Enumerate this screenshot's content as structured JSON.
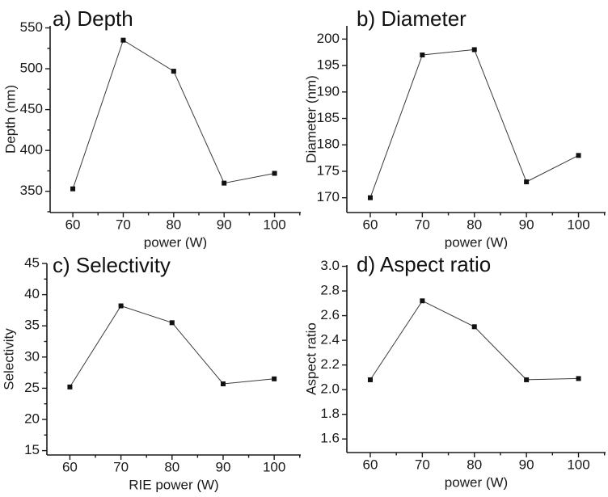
{
  "figure": {
    "background": "#ffffff",
    "text_color": "#1a1a1a",
    "axis_color": "#1a1a1a",
    "line_color": "#3a3a3a",
    "marker_color": "#111111",
    "marker": "square"
  },
  "chart_data": [
    {
      "id": "a",
      "type": "line",
      "title": "a) Depth",
      "xlabel": "power (W)",
      "ylabel": "Depth (nm)",
      "x": [
        60,
        70,
        80,
        90,
        100
      ],
      "y": [
        353,
        535,
        497,
        360,
        372
      ],
      "xticks": [
        60,
        70,
        80,
        90,
        100
      ],
      "xtick_labels": [
        "60",
        "70",
        "80",
        "90",
        "100"
      ],
      "yticks": [
        350,
        400,
        450,
        500,
        550
      ],
      "ytick_labels": [
        "350",
        "400",
        "450",
        "500",
        "550"
      ],
      "xlim": [
        55.5,
        105.2
      ],
      "ylim": [
        324,
        552.5
      ],
      "x_minor_step": 5,
      "y_minor_step": 25,
      "grid": false,
      "legend": null
    },
    {
      "id": "b",
      "type": "line",
      "title": "b) Diameter",
      "xlabel": "power (W)",
      "ylabel": "Diameter (nm)",
      "x": [
        60,
        70,
        80,
        90,
        100
      ],
      "y": [
        170,
        197,
        198,
        173,
        178
      ],
      "xticks": [
        60,
        70,
        80,
        90,
        100
      ],
      "xtick_labels": [
        "60",
        "70",
        "80",
        "90",
        "100"
      ],
      "yticks": [
        170,
        175,
        180,
        185,
        190,
        195,
        200
      ],
      "ytick_labels": [
        "170",
        "175",
        "180",
        "185",
        "190",
        "195",
        "200"
      ],
      "xlim": [
        55.5,
        105.2
      ],
      "ylim": [
        167.2,
        202.5
      ],
      "x_minor_step": 5,
      "y_minor_step": null,
      "grid": false,
      "legend": null
    },
    {
      "id": "c",
      "type": "line",
      "title": "c) Selectivity",
      "xlabel": "RIE power (W)",
      "ylabel": "Selectivity",
      "x": [
        60,
        70,
        80,
        90,
        100
      ],
      "y": [
        25.2,
        38.2,
        35.5,
        25.7,
        26.5
      ],
      "xticks": [
        60,
        70,
        80,
        90,
        100
      ],
      "xtick_labels": [
        "60",
        "70",
        "80",
        "90",
        "100"
      ],
      "yticks": [
        15,
        20,
        25,
        30,
        35,
        40,
        45
      ],
      "ytick_labels": [
        "15",
        "20",
        "25",
        "30",
        "35",
        "40",
        "45"
      ],
      "xlim": [
        55.5,
        105.2
      ],
      "ylim": [
        14.3,
        45
      ],
      "x_minor_step": 5,
      "y_minor_step": 2.5,
      "grid": false,
      "legend": null
    },
    {
      "id": "d",
      "type": "line",
      "title": "d) Aspect ratio",
      "xlabel": "power (W)",
      "ylabel": "Aspect ratio",
      "x": [
        60,
        70,
        80,
        90,
        100
      ],
      "y": [
        2.08,
        2.72,
        2.51,
        2.08,
        2.09
      ],
      "xticks": [
        60,
        70,
        80,
        90,
        100
      ],
      "xtick_labels": [
        "60",
        "70",
        "80",
        "90",
        "100"
      ],
      "yticks": [
        1.6,
        1.8,
        2.0,
        2.2,
        2.4,
        2.6,
        2.8,
        3.0
      ],
      "ytick_labels": [
        "1.6",
        "1.8",
        "2.0",
        "2.2",
        "2.4",
        "2.6",
        "2.8",
        "3.0"
      ],
      "xlim": [
        55.5,
        105.2
      ],
      "ylim": [
        1.49,
        3.01
      ],
      "x_minor_step": 5,
      "y_minor_step": null,
      "grid": false,
      "legend": null
    }
  ]
}
